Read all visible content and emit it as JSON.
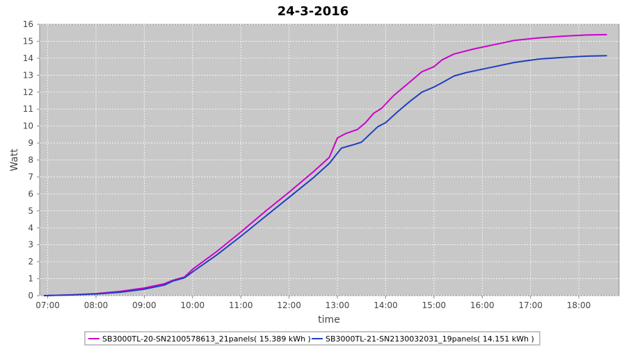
{
  "chart_data": {
    "type": "line",
    "title": "24-3-2016",
    "xlabel": "time",
    "ylabel": "Watt",
    "x_ticks": [
      "07:00",
      "08:00",
      "09:00",
      "10:00",
      "11:00",
      "12:00",
      "13:00",
      "14:00",
      "15:00",
      "16:00",
      "17:00",
      "18:00"
    ],
    "xlim": [
      "06:50",
      "18:50"
    ],
    "ylim": [
      0,
      16
    ],
    "y_ticks": [
      0,
      1,
      2,
      3,
      4,
      5,
      6,
      7,
      8,
      9,
      10,
      11,
      12,
      13,
      14,
      15,
      16
    ],
    "grid": true,
    "legend_position": "bottom",
    "plot_background": "#c8c8c8",
    "series": [
      {
        "name": "SB3000TL-20-SN2100578613_21panels( 15.389 kWh )",
        "color": "#cc00cc",
        "points": [
          [
            "06:55",
            0
          ],
          [
            "07:30",
            0.05
          ],
          [
            "08:00",
            0.12
          ],
          [
            "08:30",
            0.25
          ],
          [
            "09:00",
            0.45
          ],
          [
            "09:25",
            0.7
          ],
          [
            "09:35",
            0.9
          ],
          [
            "09:50",
            1.1
          ],
          [
            "10:00",
            1.55
          ],
          [
            "10:30",
            2.6
          ],
          [
            "11:00",
            3.75
          ],
          [
            "11:30",
            4.95
          ],
          [
            "12:00",
            6.1
          ],
          [
            "12:30",
            7.3
          ],
          [
            "12:50",
            8.15
          ],
          [
            "13:00",
            9.3
          ],
          [
            "13:10",
            9.55
          ],
          [
            "13:25",
            9.8
          ],
          [
            "13:35",
            10.2
          ],
          [
            "13:45",
            10.75
          ],
          [
            "13:55",
            11.05
          ],
          [
            "14:10",
            11.8
          ],
          [
            "14:30",
            12.6
          ],
          [
            "14:45",
            13.2
          ],
          [
            "15:00",
            13.5
          ],
          [
            "15:10",
            13.9
          ],
          [
            "15:25",
            14.25
          ],
          [
            "15:50",
            14.55
          ],
          [
            "16:15",
            14.8
          ],
          [
            "16:40",
            15.05
          ],
          [
            "17:10",
            15.2
          ],
          [
            "17:40",
            15.3
          ],
          [
            "18:10",
            15.37
          ],
          [
            "18:35",
            15.39
          ]
        ]
      },
      {
        "name": "SB3000TL-21-SN2130032031_19panels( 14.151 kWh )",
        "color": "#1f3fbf",
        "points": [
          [
            "06:55",
            0
          ],
          [
            "07:30",
            0.04
          ],
          [
            "08:00",
            0.1
          ],
          [
            "08:30",
            0.2
          ],
          [
            "09:00",
            0.38
          ],
          [
            "09:25",
            0.62
          ],
          [
            "09:35",
            0.85
          ],
          [
            "09:50",
            1.05
          ],
          [
            "10:00",
            1.4
          ],
          [
            "10:30",
            2.4
          ],
          [
            "11:00",
            3.5
          ],
          [
            "11:30",
            4.65
          ],
          [
            "12:00",
            5.8
          ],
          [
            "12:30",
            6.95
          ],
          [
            "12:50",
            7.8
          ],
          [
            "13:05",
            8.7
          ],
          [
            "13:20",
            8.9
          ],
          [
            "13:30",
            9.05
          ],
          [
            "13:40",
            9.5
          ],
          [
            "13:50",
            9.95
          ],
          [
            "14:00",
            10.2
          ],
          [
            "14:15",
            10.85
          ],
          [
            "14:30",
            11.45
          ],
          [
            "14:45",
            12.0
          ],
          [
            "15:00",
            12.3
          ],
          [
            "15:10",
            12.55
          ],
          [
            "15:25",
            12.95
          ],
          [
            "15:40",
            13.15
          ],
          [
            "16:10",
            13.45
          ],
          [
            "16:40",
            13.75
          ],
          [
            "17:10",
            13.95
          ],
          [
            "17:40",
            14.05
          ],
          [
            "18:10",
            14.12
          ],
          [
            "18:35",
            14.15
          ]
        ]
      }
    ]
  }
}
